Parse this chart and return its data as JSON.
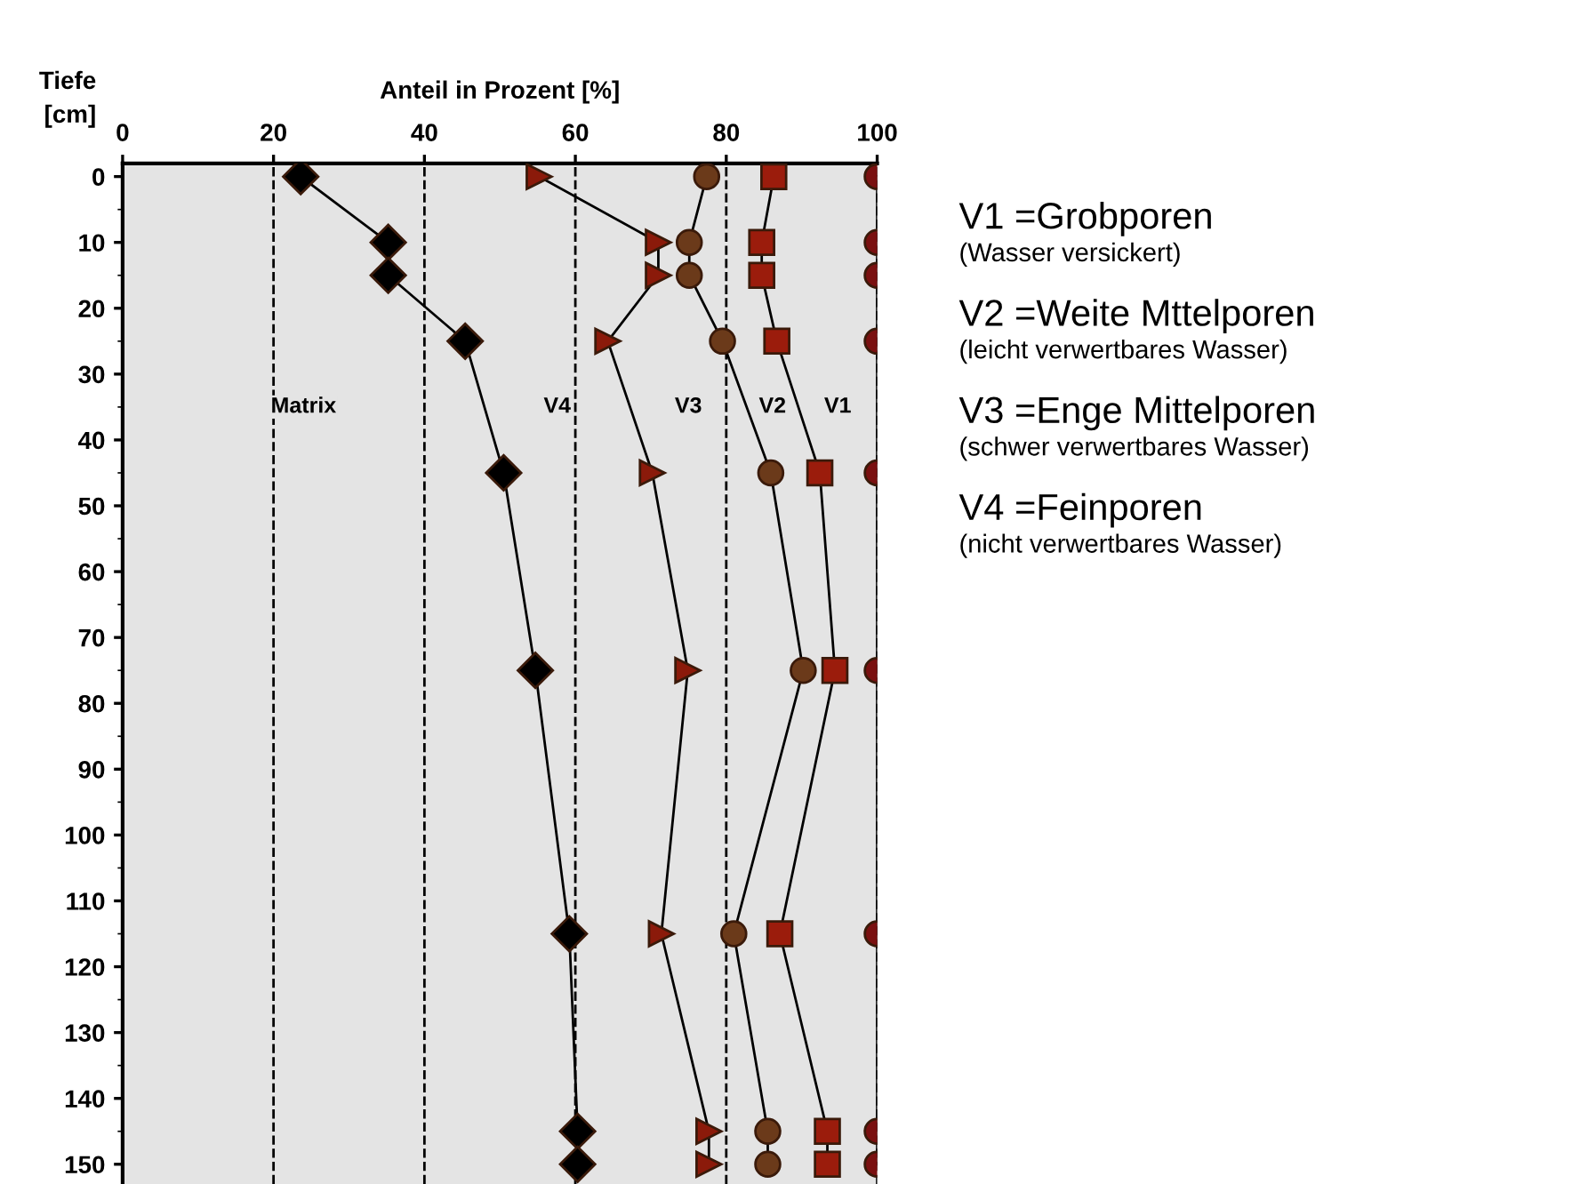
{
  "chart_data": {
    "type": "line",
    "xlabel": "Anteil in Prozent [%]",
    "ylabel": "Tiefe [cm]",
    "x": [
      0,
      10,
      15,
      25,
      45,
      75,
      115,
      145,
      150
    ],
    "orientation": "horizontal",
    "series": [
      {
        "color": "#000000",
        "marker": "diamond",
        "values": [
          23.6,
          35.2,
          35.2,
          45.4,
          50.5,
          54.7,
          59.2,
          60.3,
          60.3
        ]
      },
      {
        "color": "#8b1a0a",
        "marker": "triangle",
        "values": [
          55.2,
          71,
          71,
          64.3,
          70.2,
          74.9,
          71.4,
          77.7,
          77.7
        ]
      },
      {
        "color": "#6b3a1a",
        "marker": "circle",
        "values": [
          77.4,
          75.1,
          75.1,
          79.5,
          85.9,
          90.2,
          81,
          85.5,
          85.5
        ]
      },
      {
        "color": "#9b1c0c",
        "marker": "square",
        "values": [
          86.3,
          84.7,
          84.7,
          86.7,
          92.4,
          94.4,
          87.1,
          93.4,
          93.4
        ]
      },
      {
        "color": "#7a1010",
        "marker": "circle",
        "values": [
          100,
          100,
          100,
          100,
          100,
          100,
          100,
          100,
          100
        ]
      }
    ],
    "xlim": [
      0,
      100
    ],
    "xticks": [
      0,
      20,
      40,
      60,
      80,
      100
    ],
    "ylim": [
      153,
      -2
    ],
    "yticks": [
      0,
      10,
      20,
      30,
      40,
      50,
      60,
      70,
      80,
      90,
      100,
      110,
      120,
      130,
      140,
      150
    ],
    "grid": "x",
    "legend": false,
    "annotations": [
      "Matrix",
      "V4",
      "V3",
      "V2",
      "V1",
      "V1 =Grobporen",
      "(Wasser versickert)",
      "V2 =Weite Mttelporen",
      "(leicht verwertbares Wasser)",
      "V3 =Enge Mittelporen",
      "(schwer verwertbares Wasser)",
      "V4 =Feinporen",
      "(nicht verwertbares Wasser)"
    ]
  }
}
